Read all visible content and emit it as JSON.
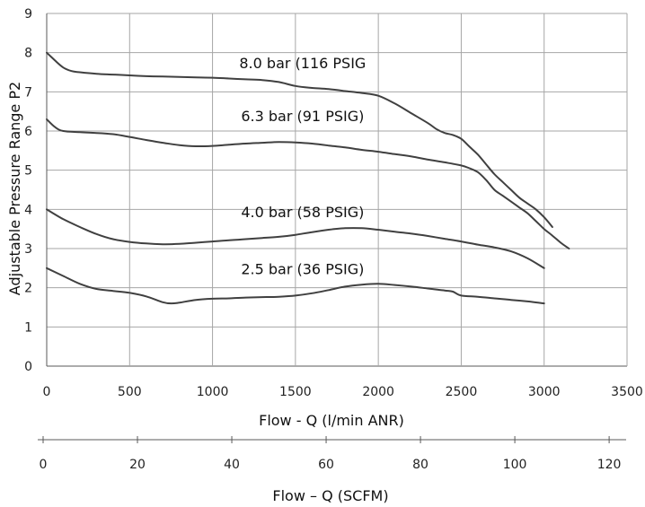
{
  "chart_data": {
    "type": "line",
    "ylabel": "Adjustable Pressure Range P2",
    "xlabel": "Flow - Q (l/min ANR)",
    "x2label": "Flow – Q (SCFM)",
    "xlim": [
      0,
      3500
    ],
    "ylim": [
      0,
      9
    ],
    "x_ticks": [
      0,
      500,
      1000,
      1500,
      2000,
      2500,
      3000,
      3500
    ],
    "y_ticks": [
      0,
      1,
      2,
      3,
      4,
      5,
      6,
      7,
      8,
      9
    ],
    "x2lim": [
      0,
      123.6
    ],
    "x2_ticks": [
      0,
      20,
      40,
      60,
      80,
      100,
      120
    ],
    "grid": true,
    "legend": "none",
    "line_color": "#404040",
    "series": [
      {
        "name": "8.0 bar (116 PSIG",
        "x": [
          0,
          50,
          100,
          150,
          200,
          300,
          400,
          500,
          600,
          700,
          800,
          900,
          1000,
          1100,
          1200,
          1300,
          1400,
          1500,
          1600,
          1700,
          1800,
          1900,
          2000,
          2100,
          2200,
          2300,
          2350,
          2400,
          2450,
          2500,
          2550,
          2600,
          2650,
          2700,
          2750,
          2800,
          2850,
          2900,
          2950,
          3000,
          3050
        ],
        "y": [
          8.0,
          7.8,
          7.62,
          7.53,
          7.5,
          7.46,
          7.44,
          7.42,
          7.4,
          7.39,
          7.38,
          7.37,
          7.36,
          7.34,
          7.32,
          7.3,
          7.25,
          7.15,
          7.1,
          7.07,
          7.02,
          6.97,
          6.9,
          6.7,
          6.45,
          6.2,
          6.05,
          5.95,
          5.9,
          5.8,
          5.6,
          5.4,
          5.15,
          4.9,
          4.7,
          4.5,
          4.3,
          4.15,
          4.0,
          3.8,
          3.55
        ]
      },
      {
        "name": "6.3 bar (91 PSIG)",
        "x": [
          0,
          50,
          100,
          200,
          300,
          400,
          500,
          600,
          700,
          800,
          900,
          1000,
          1100,
          1200,
          1300,
          1400,
          1500,
          1600,
          1700,
          1800,
          1900,
          2000,
          2100,
          2200,
          2300,
          2400,
          2500,
          2550,
          2600,
          2650,
          2700,
          2750,
          2800,
          2850,
          2900,
          2950,
          3000,
          3050,
          3100,
          3150
        ],
        "y": [
          6.3,
          6.1,
          6.0,
          5.97,
          5.95,
          5.92,
          5.85,
          5.77,
          5.7,
          5.64,
          5.61,
          5.62,
          5.65,
          5.68,
          5.7,
          5.72,
          5.71,
          5.68,
          5.63,
          5.58,
          5.52,
          5.47,
          5.41,
          5.35,
          5.27,
          5.2,
          5.12,
          5.05,
          4.95,
          4.75,
          4.5,
          4.35,
          4.2,
          4.05,
          3.9,
          3.7,
          3.5,
          3.33,
          3.15,
          3.0
        ]
      },
      {
        "name": "4.0 bar (58 PSIG)",
        "x": [
          0,
          100,
          200,
          300,
          400,
          500,
          600,
          700,
          800,
          900,
          1000,
          1100,
          1200,
          1300,
          1400,
          1500,
          1600,
          1700,
          1800,
          1900,
          2000,
          2100,
          2200,
          2300,
          2400,
          2500,
          2600,
          2700,
          2800,
          2900,
          3000
        ],
        "y": [
          4.0,
          3.75,
          3.55,
          3.37,
          3.24,
          3.17,
          3.13,
          3.11,
          3.12,
          3.15,
          3.18,
          3.21,
          3.24,
          3.27,
          3.3,
          3.35,
          3.42,
          3.48,
          3.52,
          3.52,
          3.48,
          3.43,
          3.38,
          3.32,
          3.25,
          3.18,
          3.1,
          3.03,
          2.93,
          2.75,
          2.5
        ]
      },
      {
        "name": "2.5 bar (36 PSIG)",
        "x": [
          0,
          100,
          200,
          300,
          400,
          500,
          600,
          700,
          750,
          800,
          900,
          1000,
          1100,
          1200,
          1300,
          1400,
          1500,
          1600,
          1700,
          1800,
          1900,
          2000,
          2100,
          2200,
          2300,
          2400,
          2450,
          2500,
          2600,
          2700,
          2800,
          2900,
          3000
        ],
        "y": [
          2.5,
          2.3,
          2.1,
          1.97,
          1.92,
          1.87,
          1.78,
          1.63,
          1.6,
          1.62,
          1.69,
          1.72,
          1.73,
          1.75,
          1.76,
          1.77,
          1.8,
          1.86,
          1.94,
          2.03,
          2.08,
          2.1,
          2.07,
          2.03,
          1.98,
          1.93,
          1.9,
          1.8,
          1.77,
          1.73,
          1.69,
          1.65,
          1.6
        ]
      }
    ]
  }
}
